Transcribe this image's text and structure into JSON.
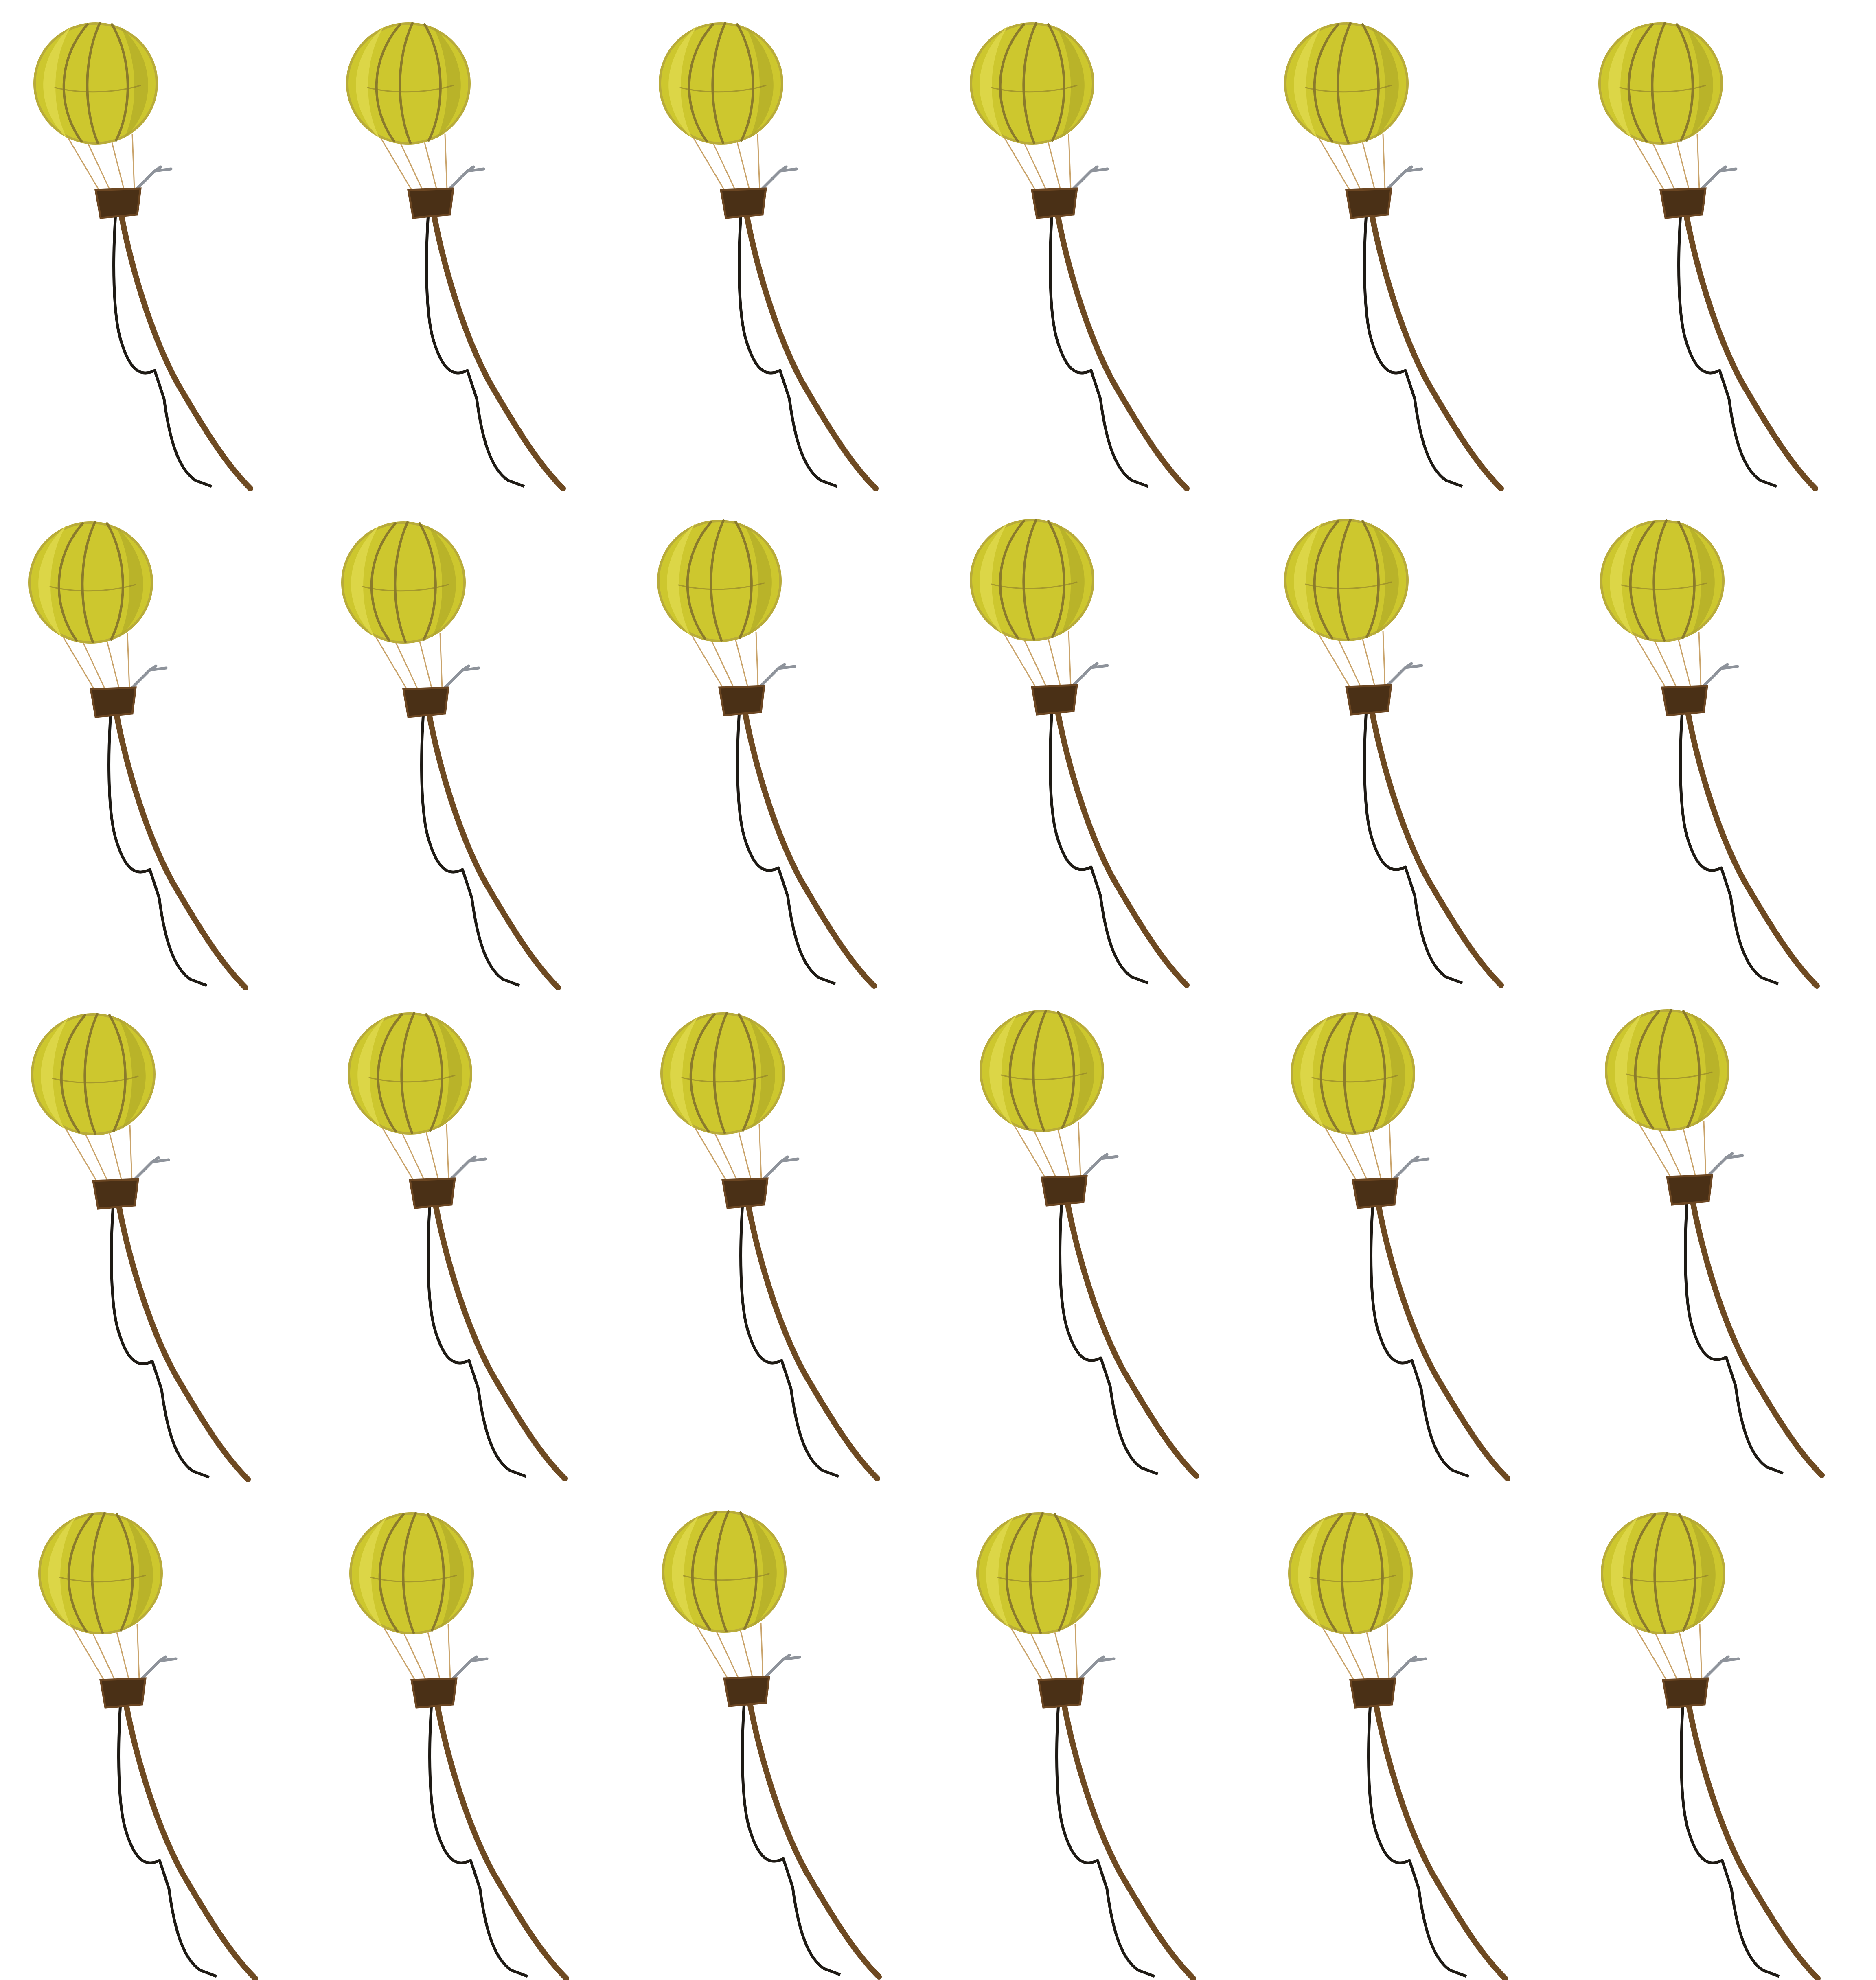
{
  "sprite_sheet": {
    "columns": 6,
    "rows": 4,
    "frame_count": 24,
    "subject": "hot-air-balloon-icon",
    "colors": {
      "background": "#ffffff",
      "envelope": "#cdc72e",
      "envelope_light": "#dcd647",
      "envelope_shade": "#a9a326",
      "seam": "#8a7a2c",
      "outline": "#b8ab3a",
      "rigging": "#c9a36a",
      "basket": "#4a3016",
      "basket_rim": "#6b4622",
      "rope": "#6e4a22",
      "cable": "#1e1a14",
      "hook": "#8e939b"
    }
  }
}
